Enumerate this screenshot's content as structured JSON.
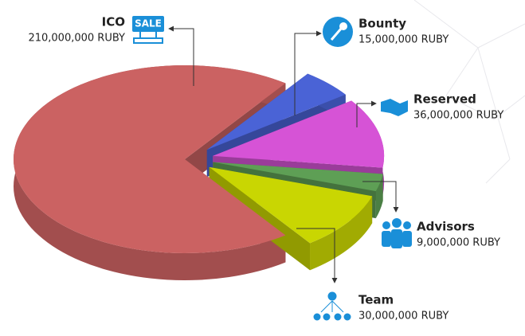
{
  "chart_data": {
    "type": "pie",
    "categories": [
      "ICO",
      "Bounty",
      "Reserved",
      "Advisors",
      "Team"
    ],
    "values": [
      210000000,
      15000000,
      36000000,
      9000000,
      30000000
    ],
    "value_labels": [
      "210,000,000 RUBY",
      "15,000,000 RUBY",
      "36,000,000 RUBY",
      "9,000,000 RUBY",
      "30,000,000 RUBY"
    ],
    "colors": [
      "#cb6262",
      "#4a63d6",
      "#d653d6",
      "#5e9f55",
      "#c9d602"
    ]
  },
  "badge": "SALE"
}
